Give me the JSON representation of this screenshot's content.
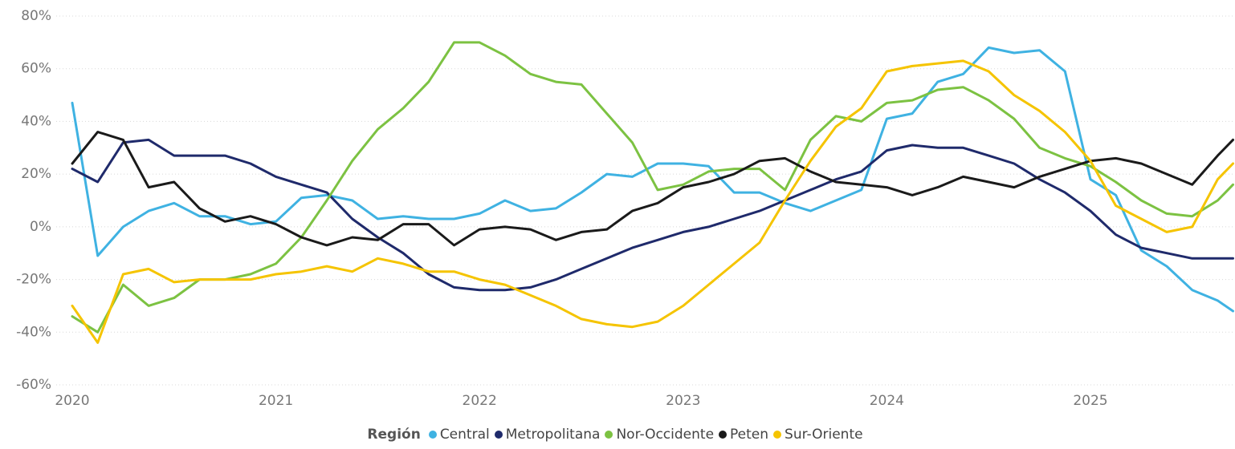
{
  "chart_data": {
    "type": "line",
    "legend_title": "Región",
    "x": [
      2020,
      2020.125,
      2020.25,
      2020.375,
      2020.5,
      2020.625,
      2020.75,
      2020.875,
      2021,
      2021.125,
      2021.25,
      2021.375,
      2021.5,
      2021.625,
      2021.75,
      2021.875,
      2022,
      2022.125,
      2022.25,
      2022.375,
      2022.5,
      2022.625,
      2022.75,
      2022.875,
      2023,
      2023.125,
      2023.25,
      2023.375,
      2023.5,
      2023.625,
      2023.75,
      2023.875,
      2024,
      2024.125,
      2024.25,
      2024.375,
      2024.5,
      2024.625,
      2024.75,
      2024.875,
      2025,
      2025.125,
      2025.25,
      2025.375,
      2025.5,
      2025.625,
      2025.7
    ],
    "series": [
      {
        "name": "Central",
        "color": "#3fb2e2",
        "values": [
          47,
          -11,
          0,
          6,
          9,
          4,
          4,
          1,
          2,
          11,
          12,
          10,
          3,
          4,
          3,
          3,
          5,
          10,
          6,
          7,
          13,
          20,
          19,
          24,
          24,
          23,
          13,
          13,
          9,
          6,
          10,
          14,
          41,
          43,
          55,
          58,
          68,
          66,
          67,
          59,
          18,
          12,
          -9,
          -15,
          -24,
          -28,
          -32
        ]
      },
      {
        "name": "Metropolitana",
        "color": "#1f2a6b",
        "values": [
          22,
          17,
          32,
          33,
          27,
          27,
          27,
          24,
          19,
          16,
          13,
          3,
          -4,
          -10,
          -18,
          -23,
          -24,
          -24,
          -23,
          -20,
          -16,
          -12,
          -8,
          -5,
          -2,
          0,
          3,
          6,
          10,
          14,
          18,
          21,
          29,
          31,
          30,
          30,
          27,
          24,
          18,
          13,
          6,
          -3,
          -8,
          -10,
          -12,
          -12,
          -12
        ]
      },
      {
        "name": "Nor-Occidente",
        "color": "#7cc242",
        "values": [
          -34,
          -40,
          -22,
          -30,
          -27,
          -20,
          -20,
          -18,
          -14,
          -4,
          10,
          25,
          37,
          45,
          55,
          70,
          70,
          65,
          58,
          55,
          54,
          43,
          32,
          14,
          16,
          21,
          22,
          22,
          14,
          33,
          42,
          40,
          47,
          48,
          52,
          53,
          48,
          41,
          30,
          26,
          23,
          17,
          10,
          5,
          4,
          10,
          16
        ]
      },
      {
        "name": "Peten",
        "color": "#1a1a1a",
        "values": [
          24,
          36,
          33,
          15,
          17,
          7,
          2,
          4,
          1,
          -4,
          -7,
          -4,
          -5,
          1,
          1,
          -7,
          -1,
          0,
          -1,
          -5,
          -2,
          -1,
          6,
          9,
          15,
          17,
          20,
          25,
          26,
          21,
          17,
          16,
          15,
          12,
          15,
          19,
          17,
          15,
          19,
          22,
          25,
          26,
          24,
          20,
          16,
          27,
          33
        ]
      },
      {
        "name": "Sur-Oriente",
        "color": "#f5c400",
        "values": [
          -30,
          -44,
          -18,
          -16,
          -21,
          -20,
          -20,
          -20,
          -18,
          -17,
          -15,
          -17,
          -12,
          -14,
          -17,
          -17,
          -20,
          -22,
          -26,
          -30,
          -35,
          -37,
          -38,
          -36,
          -30,
          -22,
          -14,
          -6,
          10,
          25,
          38,
          45,
          59,
          61,
          62,
          63,
          59,
          50,
          44,
          36,
          25,
          8,
          3,
          -2,
          0,
          18,
          24
        ]
      }
    ],
    "xlim": [
      2020,
      2025.71
    ],
    "xticks": [
      2020,
      2021,
      2022,
      2023,
      2024,
      2025
    ],
    "ylim": [
      -60,
      80
    ],
    "yticks": [
      {
        "value": -60,
        "label": "-60%"
      },
      {
        "value": -40,
        "label": "-40%"
      },
      {
        "value": -20,
        "label": "-20%"
      },
      {
        "value": 0,
        "label": "0%"
      },
      {
        "value": 20,
        "label": "20%"
      },
      {
        "value": 40,
        "label": "40%"
      },
      {
        "value": 60,
        "label": "60%"
      },
      {
        "value": 80,
        "label": "80%"
      }
    ],
    "grid": true
  }
}
